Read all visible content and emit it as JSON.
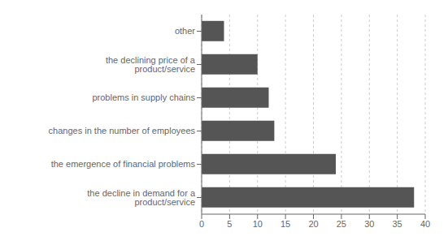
{
  "chart_data": {
    "type": "bar",
    "orientation": "horizontal",
    "categories": [
      "the decline in demand for a product/service",
      "the emergence of financial problems",
      "changes in the number of employees",
      "problems in supply chains",
      "the declining price of a product/service",
      "other"
    ],
    "values": [
      38,
      24,
      13,
      12,
      10,
      4
    ],
    "color": "#555555",
    "xlim": [
      0,
      40
    ],
    "xticks": [
      0,
      5,
      10,
      15,
      20,
      25,
      30,
      35,
      40
    ],
    "grid": true
  }
}
